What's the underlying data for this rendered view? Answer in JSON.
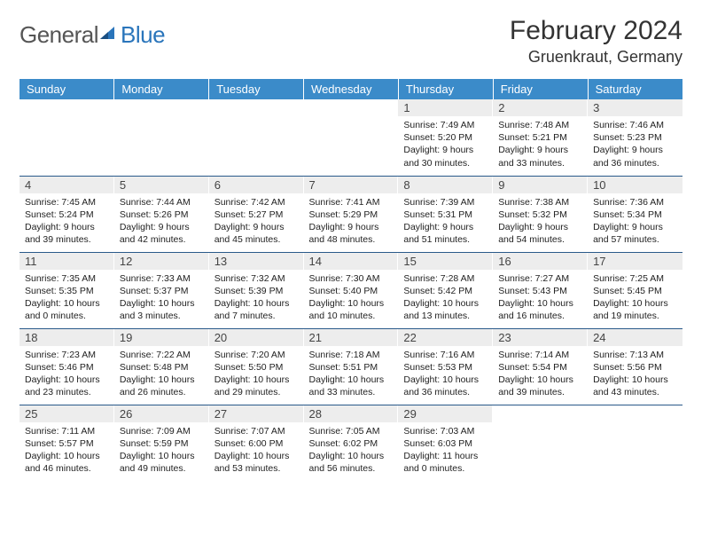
{
  "brand": {
    "textA": "General",
    "textB": "Blue"
  },
  "title": "February 2024",
  "location": "Gruenkraut, Germany",
  "colors": {
    "header_bg": "#3b8bc9",
    "header_fg": "#ffffff",
    "daynum_bg": "#ededed",
    "row_divider": "#2a5a8a",
    "logo_accent": "#2a75bb"
  },
  "typography": {
    "title_fontsize": 30,
    "location_fontsize": 18,
    "dayheader_fontsize": 13,
    "daynum_fontsize": 13,
    "body_fontsize": 10.5
  },
  "weekdays": [
    "Sunday",
    "Monday",
    "Tuesday",
    "Wednesday",
    "Thursday",
    "Friday",
    "Saturday"
  ],
  "grid": [
    [
      {
        "n": "",
        "sunrise": "",
        "sunset": "",
        "daylight": ""
      },
      {
        "n": "",
        "sunrise": "",
        "sunset": "",
        "daylight": ""
      },
      {
        "n": "",
        "sunrise": "",
        "sunset": "",
        "daylight": ""
      },
      {
        "n": "",
        "sunrise": "",
        "sunset": "",
        "daylight": ""
      },
      {
        "n": "1",
        "sunrise": "Sunrise: 7:49 AM",
        "sunset": "Sunset: 5:20 PM",
        "daylight": "Daylight: 9 hours and 30 minutes."
      },
      {
        "n": "2",
        "sunrise": "Sunrise: 7:48 AM",
        "sunset": "Sunset: 5:21 PM",
        "daylight": "Daylight: 9 hours and 33 minutes."
      },
      {
        "n": "3",
        "sunrise": "Sunrise: 7:46 AM",
        "sunset": "Sunset: 5:23 PM",
        "daylight": "Daylight: 9 hours and 36 minutes."
      }
    ],
    [
      {
        "n": "4",
        "sunrise": "Sunrise: 7:45 AM",
        "sunset": "Sunset: 5:24 PM",
        "daylight": "Daylight: 9 hours and 39 minutes."
      },
      {
        "n": "5",
        "sunrise": "Sunrise: 7:44 AM",
        "sunset": "Sunset: 5:26 PM",
        "daylight": "Daylight: 9 hours and 42 minutes."
      },
      {
        "n": "6",
        "sunrise": "Sunrise: 7:42 AM",
        "sunset": "Sunset: 5:27 PM",
        "daylight": "Daylight: 9 hours and 45 minutes."
      },
      {
        "n": "7",
        "sunrise": "Sunrise: 7:41 AM",
        "sunset": "Sunset: 5:29 PM",
        "daylight": "Daylight: 9 hours and 48 minutes."
      },
      {
        "n": "8",
        "sunrise": "Sunrise: 7:39 AM",
        "sunset": "Sunset: 5:31 PM",
        "daylight": "Daylight: 9 hours and 51 minutes."
      },
      {
        "n": "9",
        "sunrise": "Sunrise: 7:38 AM",
        "sunset": "Sunset: 5:32 PM",
        "daylight": "Daylight: 9 hours and 54 minutes."
      },
      {
        "n": "10",
        "sunrise": "Sunrise: 7:36 AM",
        "sunset": "Sunset: 5:34 PM",
        "daylight": "Daylight: 9 hours and 57 minutes."
      }
    ],
    [
      {
        "n": "11",
        "sunrise": "Sunrise: 7:35 AM",
        "sunset": "Sunset: 5:35 PM",
        "daylight": "Daylight: 10 hours and 0 minutes."
      },
      {
        "n": "12",
        "sunrise": "Sunrise: 7:33 AM",
        "sunset": "Sunset: 5:37 PM",
        "daylight": "Daylight: 10 hours and 3 minutes."
      },
      {
        "n": "13",
        "sunrise": "Sunrise: 7:32 AM",
        "sunset": "Sunset: 5:39 PM",
        "daylight": "Daylight: 10 hours and 7 minutes."
      },
      {
        "n": "14",
        "sunrise": "Sunrise: 7:30 AM",
        "sunset": "Sunset: 5:40 PM",
        "daylight": "Daylight: 10 hours and 10 minutes."
      },
      {
        "n": "15",
        "sunrise": "Sunrise: 7:28 AM",
        "sunset": "Sunset: 5:42 PM",
        "daylight": "Daylight: 10 hours and 13 minutes."
      },
      {
        "n": "16",
        "sunrise": "Sunrise: 7:27 AM",
        "sunset": "Sunset: 5:43 PM",
        "daylight": "Daylight: 10 hours and 16 minutes."
      },
      {
        "n": "17",
        "sunrise": "Sunrise: 7:25 AM",
        "sunset": "Sunset: 5:45 PM",
        "daylight": "Daylight: 10 hours and 19 minutes."
      }
    ],
    [
      {
        "n": "18",
        "sunrise": "Sunrise: 7:23 AM",
        "sunset": "Sunset: 5:46 PM",
        "daylight": "Daylight: 10 hours and 23 minutes."
      },
      {
        "n": "19",
        "sunrise": "Sunrise: 7:22 AM",
        "sunset": "Sunset: 5:48 PM",
        "daylight": "Daylight: 10 hours and 26 minutes."
      },
      {
        "n": "20",
        "sunrise": "Sunrise: 7:20 AM",
        "sunset": "Sunset: 5:50 PM",
        "daylight": "Daylight: 10 hours and 29 minutes."
      },
      {
        "n": "21",
        "sunrise": "Sunrise: 7:18 AM",
        "sunset": "Sunset: 5:51 PM",
        "daylight": "Daylight: 10 hours and 33 minutes."
      },
      {
        "n": "22",
        "sunrise": "Sunrise: 7:16 AM",
        "sunset": "Sunset: 5:53 PM",
        "daylight": "Daylight: 10 hours and 36 minutes."
      },
      {
        "n": "23",
        "sunrise": "Sunrise: 7:14 AM",
        "sunset": "Sunset: 5:54 PM",
        "daylight": "Daylight: 10 hours and 39 minutes."
      },
      {
        "n": "24",
        "sunrise": "Sunrise: 7:13 AM",
        "sunset": "Sunset: 5:56 PM",
        "daylight": "Daylight: 10 hours and 43 minutes."
      }
    ],
    [
      {
        "n": "25",
        "sunrise": "Sunrise: 7:11 AM",
        "sunset": "Sunset: 5:57 PM",
        "daylight": "Daylight: 10 hours and 46 minutes."
      },
      {
        "n": "26",
        "sunrise": "Sunrise: 7:09 AM",
        "sunset": "Sunset: 5:59 PM",
        "daylight": "Daylight: 10 hours and 49 minutes."
      },
      {
        "n": "27",
        "sunrise": "Sunrise: 7:07 AM",
        "sunset": "Sunset: 6:00 PM",
        "daylight": "Daylight: 10 hours and 53 minutes."
      },
      {
        "n": "28",
        "sunrise": "Sunrise: 7:05 AM",
        "sunset": "Sunset: 6:02 PM",
        "daylight": "Daylight: 10 hours and 56 minutes."
      },
      {
        "n": "29",
        "sunrise": "Sunrise: 7:03 AM",
        "sunset": "Sunset: 6:03 PM",
        "daylight": "Daylight: 11 hours and 0 minutes."
      },
      {
        "n": "",
        "sunrise": "",
        "sunset": "",
        "daylight": ""
      },
      {
        "n": "",
        "sunrise": "",
        "sunset": "",
        "daylight": ""
      }
    ]
  ]
}
